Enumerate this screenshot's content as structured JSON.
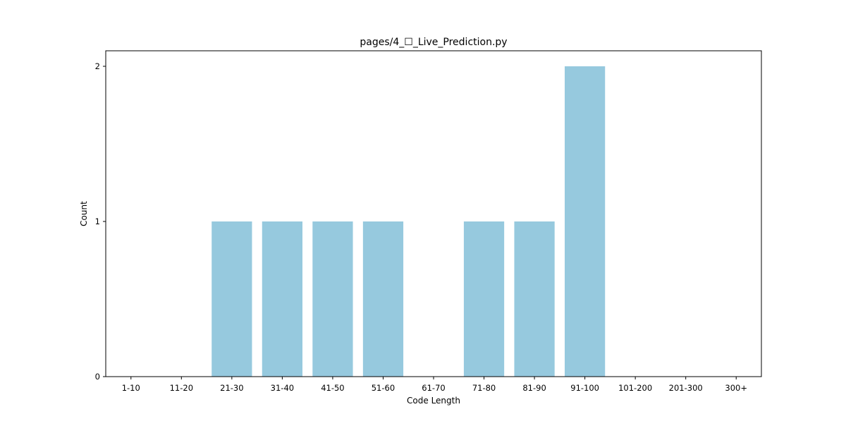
{
  "chart_data": {
    "type": "bar",
    "title": "pages/4_☐_Live_Prediction.py",
    "xlabel": "Code Length",
    "ylabel": "Count",
    "categories": [
      "1-10",
      "11-20",
      "21-30",
      "31-40",
      "41-50",
      "51-60",
      "61-70",
      "71-80",
      "81-90",
      "91-100",
      "101-200",
      "201-300",
      "300+"
    ],
    "values": [
      0,
      0,
      1,
      1,
      1,
      1,
      0,
      1,
      1,
      2,
      0,
      0,
      0
    ],
    "ylim": [
      0,
      2.1
    ],
    "yticks": [
      0,
      1,
      2
    ],
    "grid": false,
    "legend": "none",
    "bar_color": "#96c9de"
  }
}
